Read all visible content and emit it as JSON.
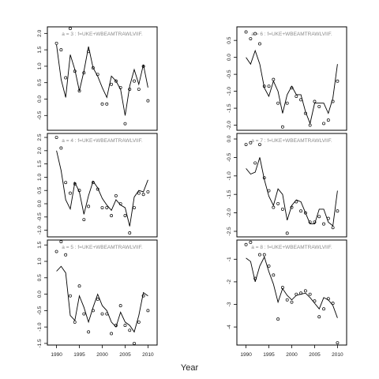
{
  "figure": {
    "xlabel": "Year"
  },
  "chart_data": [
    {
      "type": "scatter",
      "title": "a = 3  :  f=UKE+WBEAMTRAWLVIIF.",
      "xlim": [
        1988,
        2012
      ],
      "ylim": [
        -0.95,
        2.2
      ],
      "xticks": [
        "1990",
        "1995",
        "2000",
        "2005",
        "2010"
      ],
      "yticks": [
        "2.0",
        "1.5",
        "1.0",
        "0.5",
        "0.0",
        "-0.5"
      ],
      "x": [
        1990,
        1991,
        1992,
        1993,
        1994,
        1995,
        1996,
        1997,
        1998,
        1999,
        2000,
        2001,
        2002,
        2003,
        2004,
        2005,
        2006,
        2007,
        2008,
        2009,
        2010
      ],
      "observed": [
        1.7,
        1.5,
        0.65,
        2.15,
        0.85,
        0.25,
        0.8,
        1.45,
        0.95,
        0.75,
        -0.15,
        -0.15,
        0.45,
        0.55,
        0.35,
        -0.75,
        0.3,
        0.55,
        0.3,
        1.0,
        -0.05
      ],
      "fitted": [
        1.65,
        0.6,
        0.05,
        1.35,
        0.9,
        0.25,
        0.85,
        1.6,
        0.95,
        0.7,
        0.35,
        0.05,
        0.7,
        0.55,
        0.3,
        -0.5,
        0.4,
        0.9,
        0.45,
        1.05,
        0.35
      ]
    },
    {
      "type": "scatter",
      "title": "a = 6  :  f=UKE+WBEAMTRAWLVIIF.",
      "xlim": [
        1988,
        2012
      ],
      "ylim": [
        -2.15,
        0.9
      ],
      "xticks": [
        "1990",
        "1995",
        "2000",
        "2005",
        "2010"
      ],
      "yticks": [
        "0.5",
        "0.0",
        "-0.5",
        "-1.0",
        "-1.5",
        "-2.0"
      ],
      "x": [
        1990,
        1991,
        1992,
        1993,
        1994,
        1995,
        1996,
        1997,
        1998,
        1999,
        2000,
        2001,
        2002,
        2003,
        2004,
        2005,
        2006,
        2007,
        2008,
        2009,
        2010
      ],
      "observed": [
        0.75,
        0.55,
        0.7,
        0.4,
        -0.85,
        -0.85,
        -0.65,
        -1.35,
        -2.05,
        -1.35,
        -0.9,
        -1.15,
        -1.25,
        -1.65,
        -2.0,
        -1.3,
        -1.45,
        -1.95,
        -1.85,
        -1.3,
        -0.7
      ],
      "fitted": [
        0.0,
        -0.2,
        0.2,
        -0.2,
        -0.9,
        -1.15,
        -0.7,
        -1.0,
        -1.65,
        -1.1,
        -0.85,
        -1.1,
        -1.1,
        -1.6,
        -1.95,
        -1.35,
        -1.35,
        -1.35,
        -1.65,
        -1.2,
        -0.2
      ]
    },
    {
      "type": "scatter",
      "title": "a = 4  :  f=UKE+WBEAMTRAWLVIIF.",
      "xlim": [
        1988,
        2012
      ],
      "ylim": [
        -1.25,
        2.65
      ],
      "xticks": [
        "1990",
        "1995",
        "2000",
        "2005",
        "2010"
      ],
      "yticks": [
        "2.5",
        "2.0",
        "1.5",
        "1.0",
        "0.5",
        "0.0",
        "-0.5",
        "-1.0"
      ],
      "x": [
        1990,
        1991,
        1992,
        1993,
        1994,
        1995,
        1996,
        1997,
        1998,
        1999,
        2000,
        2001,
        2002,
        2003,
        2004,
        2005,
        2006,
        2007,
        2008,
        2009,
        2010
      ],
      "observed": [
        2.5,
        2.1,
        0.8,
        0.4,
        0.75,
        0.5,
        -0.6,
        -0.1,
        0.8,
        0.55,
        -0.15,
        -0.15,
        -0.45,
        0.3,
        0.0,
        -0.45,
        -1.1,
        -0.15,
        0.4,
        0.35,
        0.45
      ],
      "fitted": [
        2.0,
        1.25,
        0.15,
        -0.2,
        0.8,
        0.45,
        -0.4,
        0.3,
        0.85,
        0.6,
        0.2,
        -0.05,
        -0.25,
        0.15,
        -0.05,
        -0.15,
        -0.85,
        0.25,
        0.5,
        0.45,
        0.9
      ]
    },
    {
      "type": "scatter",
      "title": "a = 7  :  f=UKE+WBEAMTRAWLVIIF.",
      "xlim": [
        1988,
        2012
      ],
      "ylim": [
        -2.65,
        0.15
      ],
      "xticks": [
        "1990",
        "1995",
        "2000",
        "2005",
        "2010"
      ],
      "yticks": [
        "0.0",
        "-0.5",
        "-1.0",
        "-1.5",
        "-2.0",
        "-2.5"
      ],
      "x": [
        1990,
        1991,
        1992,
        1993,
        1994,
        1995,
        1996,
        1997,
        1998,
        1999,
        2000,
        2001,
        2002,
        2003,
        2004,
        2005,
        2006,
        2007,
        2008,
        2009,
        2010
      ],
      "observed": [
        -0.15,
        -0.1,
        -0.65,
        -0.15,
        -1.05,
        -1.4,
        -1.85,
        -1.75,
        -1.9,
        -2.55,
        -1.85,
        -1.7,
        -1.95,
        -2.0,
        -2.25,
        -2.25,
        -2.1,
        -2.3,
        -2.15,
        -2.4,
        -1.95
      ],
      "fitted": [
        -0.8,
        -0.95,
        -0.9,
        -0.5,
        -1.1,
        -1.55,
        -1.8,
        -1.35,
        -1.5,
        -2.2,
        -1.8,
        -1.65,
        -1.7,
        -2.0,
        -2.3,
        -2.3,
        -1.9,
        -1.9,
        -2.25,
        -2.35,
        -1.4
      ]
    },
    {
      "type": "scatter",
      "title": "a = 5  :  f=UKE+WBEAMTRAWLVIIF.",
      "xlim": [
        1988,
        2012
      ],
      "ylim": [
        -1.55,
        1.65
      ],
      "xticks": [
        "1990",
        "1995",
        "2000",
        "2005",
        "2010"
      ],
      "yticks": [
        "1.5",
        "1.0",
        "0.5",
        "0.0",
        "-0.5",
        "-1.0",
        "-1.5"
      ],
      "x": [
        1990,
        1991,
        1992,
        1993,
        1994,
        1995,
        1996,
        1997,
        1998,
        1999,
        2000,
        2001,
        2002,
        2003,
        2004,
        2005,
        2006,
        2007,
        2008,
        2009,
        2010
      ],
      "observed": [
        1.3,
        1.6,
        1.2,
        -0.05,
        -0.85,
        0.25,
        -0.6,
        -1.15,
        -0.5,
        -0.15,
        -0.6,
        -0.6,
        -1.2,
        -0.95,
        -0.35,
        -0.95,
        -1.1,
        -1.5,
        -0.85,
        -0.05,
        -0.5
      ],
      "fitted": [
        0.7,
        0.85,
        0.65,
        -0.65,
        -0.8,
        -0.05,
        -0.4,
        -0.85,
        -0.4,
        0.0,
        -0.35,
        -0.5,
        -0.85,
        -1.0,
        -0.55,
        -0.85,
        -0.95,
        -1.15,
        -0.65,
        0.05,
        -0.05
      ]
    },
    {
      "type": "scatter",
      "title": "a = 8  :  f=UKE+WBEAMTRAWLVIIF.",
      "xlim": [
        1988,
        2012
      ],
      "ylim": [
        -4.8,
        -0.15
      ],
      "xticks": [
        "1990",
        "1995",
        "2000",
        "2005",
        "2010"
      ],
      "yticks": [
        "-1",
        "-2",
        "-3",
        "-4"
      ],
      "x": [
        1990,
        1991,
        1992,
        1993,
        1994,
        1995,
        1996,
        1997,
        1998,
        1999,
        2000,
        2001,
        2002,
        2003,
        2004,
        2005,
        2006,
        2007,
        2008,
        2009,
        2010
      ],
      "observed": [
        -0.35,
        -0.25,
        -1.85,
        -0.8,
        -0.8,
        -1.3,
        -1.7,
        -3.65,
        -2.25,
        -2.8,
        -2.9,
        -2.55,
        -2.5,
        -2.4,
        -2.55,
        -2.85,
        -3.55,
        -3.2,
        -2.75,
        -2.95,
        -4.7
      ],
      "fitted": [
        -0.95,
        -1.1,
        -2.0,
        -1.3,
        -0.9,
        -1.55,
        -2.1,
        -2.9,
        -2.3,
        -2.6,
        -2.8,
        -2.6,
        -2.55,
        -2.5,
        -2.7,
        -2.95,
        -3.2,
        -2.7,
        -2.8,
        -3.05,
        -3.6
      ]
    }
  ]
}
